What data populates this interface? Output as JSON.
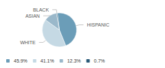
{
  "chart_data": {
    "type": "pie",
    "categories": [
      "HISPANIC",
      "WHITE",
      "ASIAN",
      "BLACK"
    ],
    "values": [
      45.9,
      41.1,
      12.3,
      0.7
    ],
    "value_labels": [
      "45.9%",
      "41.1%",
      "12.3%",
      "0.7%"
    ],
    "colors": [
      "#6b9db8",
      "#c5d9e4",
      "#9ab8ca",
      "#2a5a78"
    ],
    "legend": "lower left"
  }
}
